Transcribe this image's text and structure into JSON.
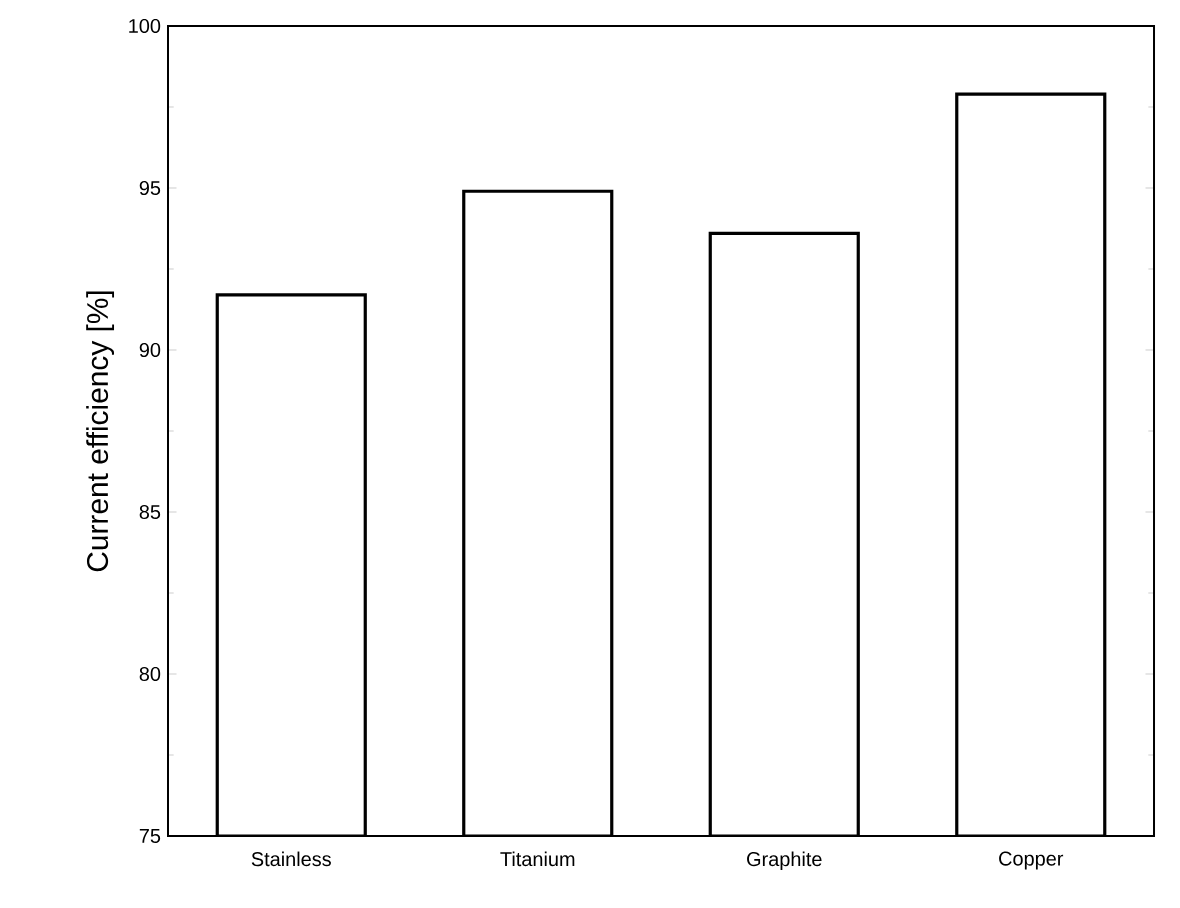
{
  "chart_data": {
    "type": "bar",
    "ylabel": "Current efficiency [%]",
    "categories": [
      "Stainless",
      "Titanium",
      "Graphite",
      "Copper"
    ],
    "values": [
      91.7,
      94.9,
      93.6,
      97.9
    ],
    "color": "#ffffff",
    "ylim": [
      75,
      100
    ],
    "yticks": [
      75,
      80,
      85,
      90,
      95,
      100
    ],
    "grid": false
  }
}
